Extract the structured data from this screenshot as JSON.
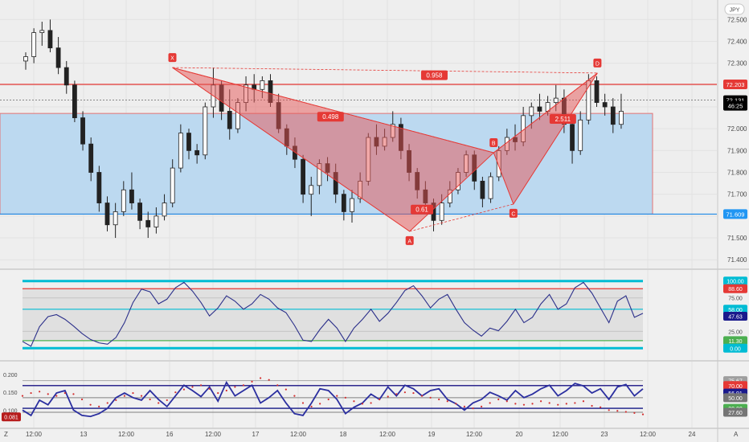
{
  "chart_data": {
    "type": "candlestick",
    "currency_button": "JPY",
    "x_ticks": [
      "12:00",
      "13",
      "12:00",
      "16",
      "12:00",
      "17",
      "12:00",
      "18",
      "12:00",
      "19",
      "12:00",
      "20",
      "12:00",
      "23",
      "12:00",
      "24"
    ],
    "bottom_left_label": "Z",
    "bottom_right_label": "A",
    "price_axis": {
      "ticks": [
        "72.500",
        "72.400",
        "72.300",
        "72.200",
        "72.100",
        "72.000",
        "71.900",
        "71.800",
        "71.700",
        "71.600",
        "71.500",
        "71.400"
      ],
      "ylim": [
        71.375,
        72.56
      ],
      "badges": [
        {
          "label": "72.203",
          "value": 72.203,
          "color": "#e53935"
        },
        {
          "label": "72.131",
          "value": 72.131,
          "color": "#000000"
        },
        {
          "label": "46:25",
          "value": 72.105,
          "color": "#000000"
        },
        {
          "label": "71.609",
          "value": 71.609,
          "color": "#2196f3"
        }
      ]
    },
    "resistance_line": 72.203,
    "support_line": 71.609,
    "last_price": 72.131,
    "range_box": {
      "top": 72.07,
      "bottom": 71.609
    },
    "pattern": {
      "type": "bat",
      "points": [
        {
          "label": "X",
          "i": 3.0,
          "price": 72.28
        },
        {
          "label": "A",
          "i": 7.8,
          "price": 71.53
        },
        {
          "label": "B",
          "i": 9.5,
          "price": 71.89
        },
        {
          "label": "C",
          "i": 9.9,
          "price": 71.655
        },
        {
          "label": "D",
          "i": 11.6,
          "price": 72.255
        }
      ],
      "ratios": [
        {
          "label": "0.958",
          "i": 8.3,
          "price": 72.245
        },
        {
          "label": "0.498",
          "i": 6.2,
          "price": 72.055
        },
        {
          "label": "0.61",
          "i": 8.05,
          "price": 71.63
        },
        {
          "label": "2.511",
          "i": 10.9,
          "price": 72.045
        }
      ]
    },
    "candles": [
      {
        "o": 72.31,
        "h": 72.35,
        "l": 72.27,
        "c": 72.33
      },
      {
        "o": 72.33,
        "h": 72.46,
        "l": 72.3,
        "c": 72.44
      },
      {
        "o": 72.44,
        "h": 72.49,
        "l": 72.38,
        "c": 72.45
      },
      {
        "o": 72.45,
        "h": 72.5,
        "l": 72.35,
        "c": 72.37
      },
      {
        "o": 72.37,
        "h": 72.42,
        "l": 72.25,
        "c": 72.28
      },
      {
        "o": 72.28,
        "h": 72.31,
        "l": 72.16,
        "c": 72.2
      },
      {
        "o": 72.2,
        "h": 72.22,
        "l": 72.03,
        "c": 72.05
      },
      {
        "o": 72.05,
        "h": 72.08,
        "l": 71.9,
        "c": 71.93
      },
      {
        "o": 71.93,
        "h": 71.96,
        "l": 71.76,
        "c": 71.8
      },
      {
        "o": 71.8,
        "h": 71.83,
        "l": 71.62,
        "c": 71.66
      },
      {
        "o": 71.66,
        "h": 71.69,
        "l": 71.53,
        "c": 71.56
      },
      {
        "o": 71.56,
        "h": 71.66,
        "l": 71.5,
        "c": 71.62
      },
      {
        "o": 71.62,
        "h": 71.76,
        "l": 71.6,
        "c": 71.72
      },
      {
        "o": 71.72,
        "h": 71.8,
        "l": 71.63,
        "c": 71.66
      },
      {
        "o": 71.66,
        "h": 71.68,
        "l": 71.54,
        "c": 71.58
      },
      {
        "o": 71.58,
        "h": 71.62,
        "l": 71.5,
        "c": 71.55
      },
      {
        "o": 71.55,
        "h": 71.64,
        "l": 71.52,
        "c": 71.6
      },
      {
        "o": 71.6,
        "h": 71.7,
        "l": 71.58,
        "c": 71.66
      },
      {
        "o": 71.66,
        "h": 71.86,
        "l": 71.64,
        "c": 71.82
      },
      {
        "o": 71.82,
        "h": 72.02,
        "l": 71.8,
        "c": 71.98
      },
      {
        "o": 71.98,
        "h": 72.0,
        "l": 71.86,
        "c": 71.9
      },
      {
        "o": 71.9,
        "h": 71.93,
        "l": 71.84,
        "c": 71.88
      },
      {
        "o": 71.88,
        "h": 72.12,
        "l": 71.86,
        "c": 72.1
      },
      {
        "o": 72.1,
        "h": 72.28,
        "l": 72.05,
        "c": 72.2
      },
      {
        "o": 72.2,
        "h": 72.22,
        "l": 72.04,
        "c": 72.08
      },
      {
        "o": 72.08,
        "h": 72.18,
        "l": 71.95,
        "c": 72.0
      },
      {
        "o": 72.0,
        "h": 72.14,
        "l": 71.98,
        "c": 72.12
      },
      {
        "o": 72.12,
        "h": 72.24,
        "l": 72.08,
        "c": 72.2
      },
      {
        "o": 72.2,
        "h": 72.25,
        "l": 72.12,
        "c": 72.18
      },
      {
        "o": 72.18,
        "h": 72.24,
        "l": 72.14,
        "c": 72.22
      },
      {
        "o": 72.22,
        "h": 72.25,
        "l": 72.1,
        "c": 72.12
      },
      {
        "o": 72.12,
        "h": 72.16,
        "l": 71.98,
        "c": 72.0
      },
      {
        "o": 72.0,
        "h": 72.02,
        "l": 71.88,
        "c": 71.92
      },
      {
        "o": 71.92,
        "h": 71.96,
        "l": 71.82,
        "c": 71.86
      },
      {
        "o": 71.86,
        "h": 71.88,
        "l": 71.66,
        "c": 71.7
      },
      {
        "o": 71.7,
        "h": 71.78,
        "l": 71.6,
        "c": 71.74
      },
      {
        "o": 71.74,
        "h": 71.86,
        "l": 71.7,
        "c": 71.84
      },
      {
        "o": 71.84,
        "h": 71.87,
        "l": 71.76,
        "c": 71.8
      },
      {
        "o": 71.8,
        "h": 71.84,
        "l": 71.66,
        "c": 71.7
      },
      {
        "o": 71.7,
        "h": 71.72,
        "l": 71.58,
        "c": 71.62
      },
      {
        "o": 71.62,
        "h": 71.72,
        "l": 71.57,
        "c": 71.68
      },
      {
        "o": 71.68,
        "h": 71.8,
        "l": 71.66,
        "c": 71.76
      },
      {
        "o": 71.76,
        "h": 71.98,
        "l": 71.74,
        "c": 71.96
      },
      {
        "o": 71.96,
        "h": 72.02,
        "l": 71.88,
        "c": 71.92
      },
      {
        "o": 71.92,
        "h": 72.0,
        "l": 71.9,
        "c": 71.96
      },
      {
        "o": 71.96,
        "h": 72.08,
        "l": 71.94,
        "c": 72.02
      },
      {
        "o": 72.02,
        "h": 72.05,
        "l": 71.86,
        "c": 71.9
      },
      {
        "o": 71.9,
        "h": 71.93,
        "l": 71.76,
        "c": 71.8
      },
      {
        "o": 71.8,
        "h": 71.82,
        "l": 71.68,
        "c": 71.72
      },
      {
        "o": 71.72,
        "h": 71.76,
        "l": 71.62,
        "c": 71.66
      },
      {
        "o": 71.66,
        "h": 71.68,
        "l": 71.53,
        "c": 71.58
      },
      {
        "o": 71.58,
        "h": 71.7,
        "l": 71.56,
        "c": 71.66
      },
      {
        "o": 71.66,
        "h": 71.76,
        "l": 71.64,
        "c": 71.72
      },
      {
        "o": 71.72,
        "h": 71.82,
        "l": 71.7,
        "c": 71.8
      },
      {
        "o": 71.8,
        "h": 71.9,
        "l": 71.78,
        "c": 71.88
      },
      {
        "o": 71.88,
        "h": 71.9,
        "l": 71.72,
        "c": 71.76
      },
      {
        "o": 71.76,
        "h": 71.78,
        "l": 71.64,
        "c": 71.68
      },
      {
        "o": 71.68,
        "h": 71.8,
        "l": 71.66,
        "c": 71.78
      },
      {
        "o": 71.78,
        "h": 71.92,
        "l": 71.76,
        "c": 71.9
      },
      {
        "o": 71.9,
        "h": 72.0,
        "l": 71.88,
        "c": 71.96
      },
      {
        "o": 71.96,
        "h": 72.02,
        "l": 71.9,
        "c": 71.94
      },
      {
        "o": 71.94,
        "h": 72.1,
        "l": 71.92,
        "c": 72.06
      },
      {
        "o": 72.06,
        "h": 72.12,
        "l": 72.0,
        "c": 72.1
      },
      {
        "o": 72.1,
        "h": 72.16,
        "l": 72.04,
        "c": 72.08
      },
      {
        "o": 72.08,
        "h": 72.15,
        "l": 72.06,
        "c": 72.12
      },
      {
        "o": 72.12,
        "h": 72.2,
        "l": 72.08,
        "c": 72.14
      },
      {
        "o": 72.14,
        "h": 72.18,
        "l": 71.98,
        "c": 72.02
      },
      {
        "o": 72.02,
        "h": 72.04,
        "l": 71.84,
        "c": 71.9
      },
      {
        "o": 71.9,
        "h": 72.08,
        "l": 71.88,
        "c": 72.04
      },
      {
        "o": 72.04,
        "h": 72.25,
        "l": 72.02,
        "c": 72.22
      },
      {
        "o": 72.22,
        "h": 72.24,
        "l": 72.1,
        "c": 72.12
      },
      {
        "o": 72.12,
        "h": 72.16,
        "l": 72.06,
        "c": 72.1
      },
      {
        "o": 72.1,
        "h": 72.14,
        "l": 71.98,
        "c": 72.02
      },
      {
        "o": 72.02,
        "h": 72.16,
        "l": 72.0,
        "c": 72.08
      }
    ],
    "rsi_panel": {
      "ylim": [
        -8,
        108
      ],
      "levels": [
        {
          "label": "100.00",
          "value": 100,
          "color": "#00bcd4"
        },
        {
          "label": "88.60",
          "value": 88.6,
          "color": "#e53935"
        },
        {
          "label": "75.00",
          "value": 75,
          "color": "#bdbdbd"
        },
        {
          "label": "58.00",
          "value": 58,
          "color": "#00bcd4"
        },
        {
          "label": "47.63",
          "value": 47.63,
          "color": "#1a1a8c"
        },
        {
          "label": "25.00",
          "value": 25,
          "color": "#bdbdbd"
        },
        {
          "label": "11.30",
          "value": 11.3,
          "color": "#4caf50"
        },
        {
          "label": "0.00",
          "value": 0,
          "color": "#00bcd4"
        }
      ],
      "axis_ticks": [
        "100.00",
        "75.00",
        "50.00",
        "25.00",
        "0.00"
      ],
      "values": [
        10,
        3,
        32,
        47,
        50,
        43,
        33,
        22,
        13,
        8,
        6,
        16,
        38,
        68,
        88,
        84,
        66,
        73,
        90,
        98,
        85,
        68,
        48,
        60,
        78,
        70,
        58,
        66,
        80,
        73,
        60,
        53,
        34,
        12,
        10,
        28,
        43,
        30,
        10,
        30,
        43,
        58,
        40,
        52,
        68,
        86,
        93,
        78,
        60,
        73,
        80,
        58,
        38,
        27,
        18,
        30,
        26,
        40,
        58,
        38,
        46,
        66,
        80,
        58,
        66,
        90,
        98,
        82,
        60,
        38,
        70,
        78,
        46,
        52
      ]
    },
    "osc_panel": {
      "ylim": [
        0.06,
        0.225
      ],
      "axis_ticks": [
        "0.200",
        "0.150",
        "0.100"
      ],
      "left_badge": "0.081",
      "levels": [
        {
          "label": "75.67",
          "value": 0.183,
          "color": "#9e9e9e"
        },
        {
          "label": "70.00",
          "value": 0.169,
          "color": "#e53935"
        },
        {
          "label": "56.91",
          "value": 0.148,
          "color": "#1a1a8c"
        },
        {
          "label": "50.00",
          "value": 0.135,
          "color": "#757575"
        },
        {
          "label": "30.00",
          "value": 0.105,
          "color": "#4caf50"
        },
        {
          "label": "27.60",
          "value": 0.094,
          "color": "#757575"
        }
      ],
      "values": [
        0.1,
        0.085,
        0.128,
        0.115,
        0.148,
        0.155,
        0.1,
        0.085,
        0.082,
        0.09,
        0.105,
        0.135,
        0.148,
        0.135,
        0.128,
        0.155,
        0.13,
        0.11,
        0.14,
        0.17,
        0.155,
        0.138,
        0.165,
        0.125,
        0.178,
        0.14,
        0.155,
        0.17,
        0.12,
        0.135,
        0.155,
        0.12,
        0.09,
        0.085,
        0.12,
        0.16,
        0.155,
        0.13,
        0.09,
        0.108,
        0.12,
        0.145,
        0.13,
        0.165,
        0.14,
        0.17,
        0.16,
        0.14,
        0.155,
        0.16,
        0.13,
        0.118,
        0.1,
        0.12,
        0.13,
        0.15,
        0.14,
        0.128,
        0.155,
        0.135,
        0.145,
        0.16,
        0.17,
        0.14,
        0.155,
        0.175,
        0.168,
        0.148,
        0.16,
        0.13,
        0.165,
        0.172,
        0.14,
        0.16
      ],
      "dots": [
        0.14,
        0.148,
        0.152,
        0.145,
        0.14,
        0.148,
        0.145,
        0.13,
        0.115,
        0.11,
        0.12,
        0.128,
        0.14,
        0.148,
        0.14,
        0.13,
        0.12,
        0.128,
        0.15,
        0.158,
        0.165,
        0.17,
        0.16,
        0.148,
        0.155,
        0.165,
        0.17,
        0.18,
        0.19,
        0.185,
        0.17,
        0.158,
        0.14,
        0.12,
        0.11,
        0.118,
        0.13,
        0.14,
        0.135,
        0.125,
        0.118,
        0.12,
        0.13,
        0.138,
        0.145,
        0.15,
        0.148,
        0.14,
        0.135,
        0.13,
        0.125,
        0.118,
        0.11,
        0.105,
        0.11,
        0.12,
        0.13,
        0.125,
        0.118,
        0.115,
        0.118,
        0.125,
        0.12,
        0.115,
        0.118,
        0.12,
        0.125,
        0.112,
        0.108,
        0.1,
        0.098,
        0.095,
        0.092,
        0.088
      ]
    },
    "grid": true
  }
}
